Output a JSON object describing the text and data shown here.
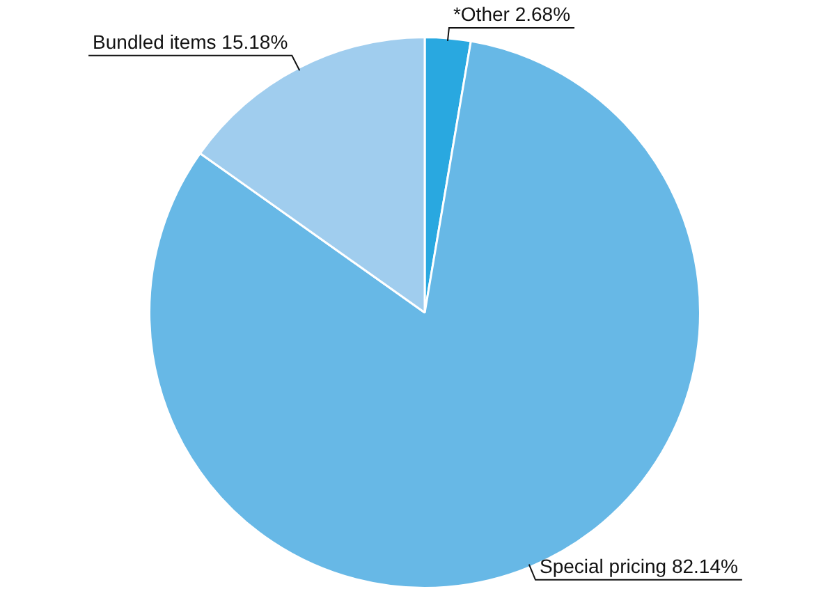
{
  "chart_data": {
    "type": "pie",
    "categories": [
      "*Other",
      "Special pricing",
      "Bundled items"
    ],
    "values": [
      2.68,
      82.14,
      15.18
    ],
    "colors": [
      "#29a8e0",
      "#67b8e6",
      "#a0cdee"
    ],
    "value_labels": [
      "2.68%",
      "82.14%",
      "15.18%"
    ],
    "legend": false
  }
}
